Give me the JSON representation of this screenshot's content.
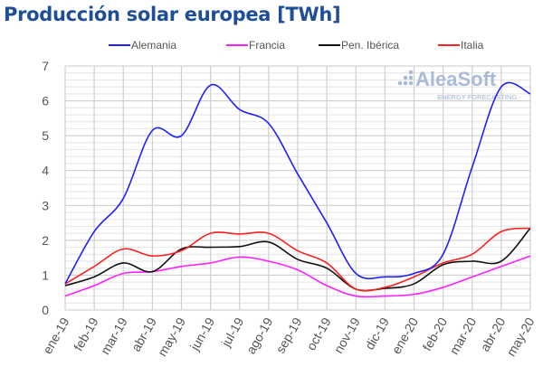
{
  "chart_data": {
    "type": "line",
    "title": "Producción solar europea [TWh]",
    "categories": [
      "ene-19",
      "feb-19",
      "mar-19",
      "abr-19",
      "may-19",
      "jun-19",
      "jul-19",
      "ago-19",
      "sep-19",
      "oct-19",
      "nov-19",
      "dic-19",
      "ene-20",
      "feb-20",
      "mar-20",
      "abr-20",
      "may-20"
    ],
    "ylim": [
      0,
      7
    ],
    "yticks": [
      "0",
      "1",
      "2",
      "3",
      "4",
      "5",
      "6",
      "7"
    ],
    "grid": true,
    "legend": "top",
    "series": [
      {
        "name": "Alemania",
        "color": "#2020ff",
        "values": [
          0.75,
          2.25,
          3.2,
          5.15,
          5.0,
          6.45,
          5.75,
          5.35,
          3.9,
          2.5,
          1.05,
          0.95,
          1.05,
          1.6,
          4.1,
          6.4,
          6.2
        ]
      },
      {
        "name": "Francia",
        "color": "#ff20ff",
        "values": [
          0.4,
          0.7,
          1.05,
          1.1,
          1.25,
          1.35,
          1.52,
          1.4,
          1.15,
          0.7,
          0.4,
          0.4,
          0.45,
          0.65,
          0.95,
          1.25,
          1.55
        ]
      },
      {
        "name": "Pen. Ibérica",
        "color": "#111111",
        "values": [
          0.7,
          0.95,
          1.35,
          1.1,
          1.75,
          1.8,
          1.82,
          1.95,
          1.45,
          1.2,
          0.6,
          0.62,
          0.75,
          1.3,
          1.4,
          1.4,
          2.35
        ]
      },
      {
        "name": "Italia",
        "color": "#ff2020",
        "values": [
          0.75,
          1.25,
          1.75,
          1.55,
          1.7,
          2.2,
          2.18,
          2.2,
          1.7,
          1.35,
          0.6,
          0.65,
          0.95,
          1.35,
          1.6,
          2.25,
          2.35
        ]
      }
    ]
  },
  "watermark": {
    "brand": "AleaSoft",
    "tagline": "ENERGY FORECASTING"
  }
}
